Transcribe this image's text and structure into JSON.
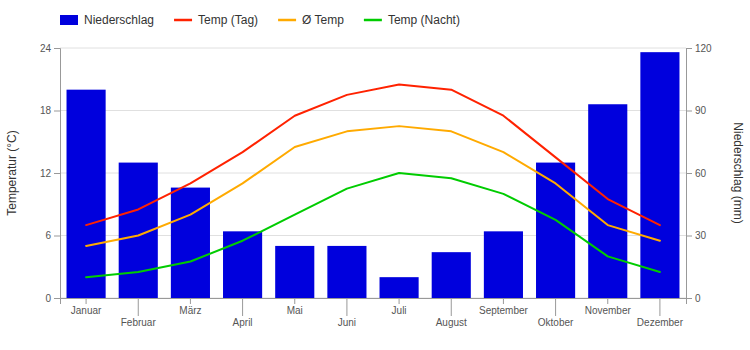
{
  "chart_data": {
    "type": "line",
    "categories": [
      "Januar",
      "Februar",
      "März",
      "April",
      "Mai",
      "Juni",
      "Juli",
      "August",
      "September",
      "Oktober",
      "November",
      "Dezember"
    ],
    "series": [
      {
        "name": "Niederschlag",
        "type": "bar",
        "axis": "y2",
        "color": "#0000dd",
        "values": [
          100,
          65,
          53,
          32,
          25,
          25,
          10,
          22,
          32,
          65,
          93,
          118
        ]
      },
      {
        "name": "Temp (Tag)",
        "color": "#ff2200",
        "values": [
          7.0,
          8.5,
          11.0,
          14.0,
          17.5,
          19.5,
          20.5,
          20.0,
          17.5,
          13.5,
          9.5,
          7.0
        ]
      },
      {
        "name": "Ø Temp",
        "color": "#ffaa00",
        "values": [
          5.0,
          6.0,
          8.0,
          11.0,
          14.5,
          16.0,
          16.5,
          16.0,
          14.0,
          11.0,
          7.0,
          5.5
        ]
      },
      {
        "name": "Temp (Nacht)",
        "color": "#00cc00",
        "values": [
          2.0,
          2.5,
          3.5,
          5.5,
          8.0,
          10.5,
          12.0,
          11.5,
          10.0,
          7.5,
          4.0,
          2.5
        ]
      }
    ],
    "y_label": "Temperatur (°C)",
    "y2_label": "Niederschlag (mm)",
    "ylim": [
      0,
      24
    ],
    "yticks": [
      0,
      6,
      12,
      18,
      24
    ],
    "y2lim": [
      0,
      120
    ],
    "y2ticks": [
      0,
      30,
      60,
      90,
      120
    ],
    "grid": true,
    "legend": "top"
  }
}
